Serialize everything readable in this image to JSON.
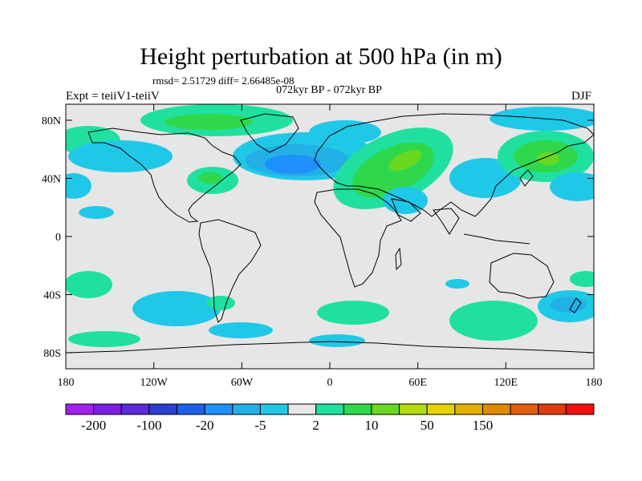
{
  "header": {
    "title": "Height perturbation at 500 hPa (in m)",
    "stats": "rmsd= 2.51729 diff= 2.66485e-08",
    "subtitle": "072kyr BP - 072kyr BP",
    "experiment": "Expt = teiiV1-teiiV",
    "season": "DJF"
  },
  "map": {
    "background_color": "#e6e6e6",
    "lat_ticks": [
      "80N",
      "40N",
      "0",
      "40S",
      "80S"
    ],
    "lon_ticks": [
      "180",
      "120W",
      "60W",
      "0",
      "60E",
      "120E",
      "180"
    ]
  },
  "colorbar": {
    "colors": [
      "#a020f0",
      "#7b1fe0",
      "#5a2bd8",
      "#2b3fd0",
      "#1e5ee8",
      "#1e90ff",
      "#22b0e6",
      "#20c8e8",
      "#e6e6e6",
      "#20e0a0",
      "#2ed84a",
      "#6ad820",
      "#b4dc10",
      "#e6d200",
      "#e0b000",
      "#e08a00",
      "#e06010",
      "#e03c10",
      "#f01010"
    ],
    "labels": [
      "-200",
      "-100",
      "-20",
      "-5",
      "2",
      "10",
      "50",
      "150"
    ]
  }
}
